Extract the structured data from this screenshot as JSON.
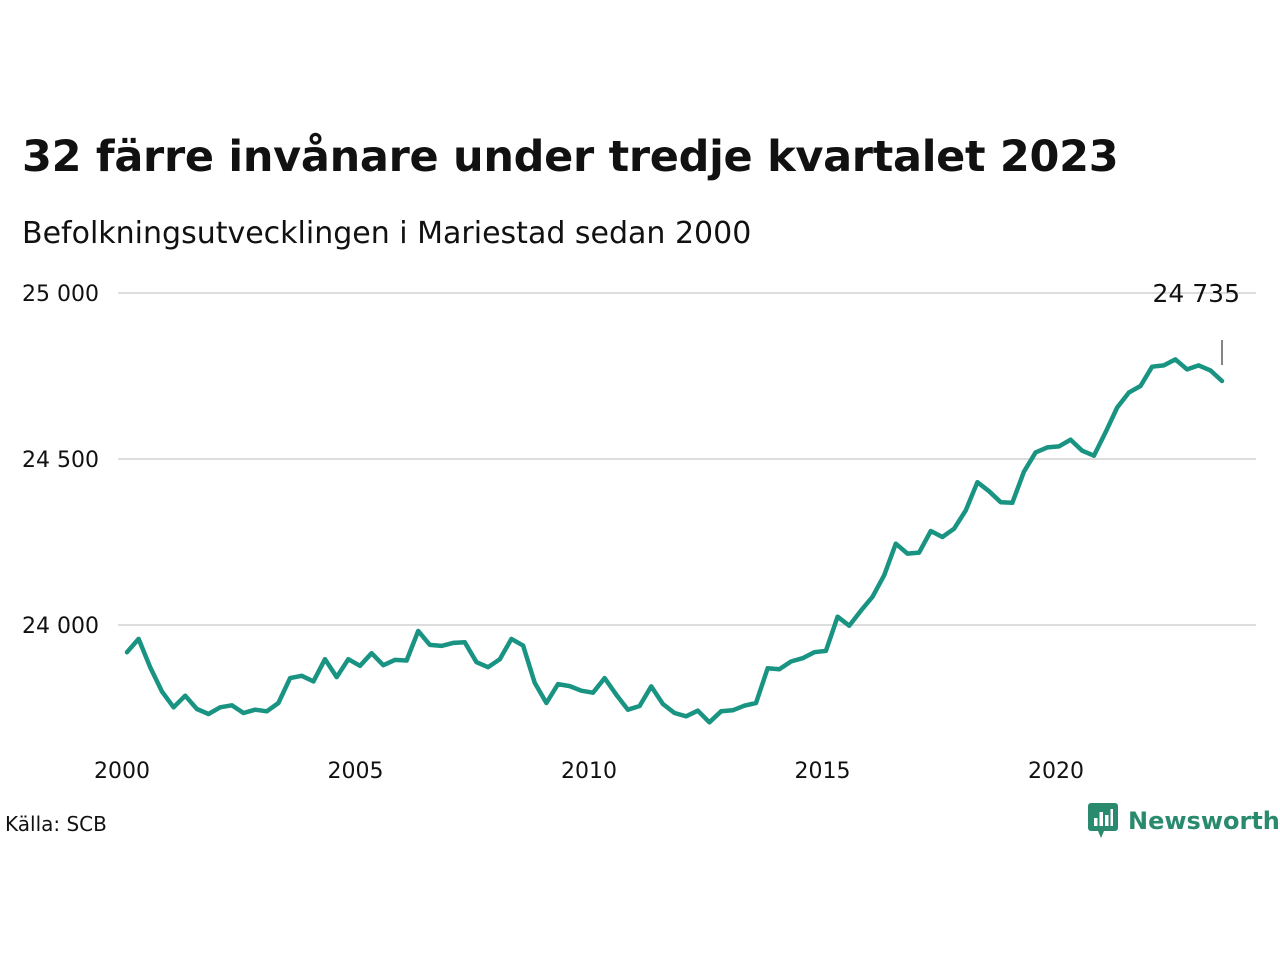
{
  "title": "32 färre invånare under tredje kvartalet 2023",
  "subtitle": "Befolkningsutvecklingen i Mariestad sedan 2000",
  "source": "Källa: SCB",
  "brand": {
    "name": "Newsworthy",
    "icon": "newsworthy-logo-icon",
    "color": "#2a8a6e"
  },
  "colors": {
    "line": "#1a9482",
    "grid": "#dddddd",
    "text": "#111111"
  },
  "chart_data": {
    "type": "line",
    "title": "32 färre invånare under tredje kvartalet 2023",
    "subtitle": "Befolkningsutvecklingen i Mariestad sedan 2000",
    "xlabel": "",
    "ylabel": "",
    "ylim": [
      23700,
      25000
    ],
    "xlim": [
      2000,
      2024
    ],
    "grid": true,
    "yticks": [
      24000,
      24500,
      25000
    ],
    "ytick_labels": [
      "24 000",
      "24 500",
      "25 000"
    ],
    "xticks": [
      2000,
      2005,
      2010,
      2015,
      2020
    ],
    "xtick_labels": [
      "2000",
      "2005",
      "2010",
      "2015",
      "2020"
    ],
    "end_label": "24 735",
    "x": [
      "2000Q1",
      "2000Q2",
      "2000Q3",
      "2000Q4",
      "2001Q1",
      "2001Q2",
      "2001Q3",
      "2001Q4",
      "2002Q1",
      "2002Q2",
      "2002Q3",
      "2002Q4",
      "2003Q1",
      "2003Q2",
      "2003Q3",
      "2003Q4",
      "2004Q1",
      "2004Q2",
      "2004Q3",
      "2004Q4",
      "2005Q1",
      "2005Q2",
      "2005Q3",
      "2005Q4",
      "2006Q1",
      "2006Q2",
      "2006Q3",
      "2006Q4",
      "2007Q1",
      "2007Q2",
      "2007Q3",
      "2007Q4",
      "2008Q1",
      "2008Q2",
      "2008Q3",
      "2008Q4",
      "2009Q1",
      "2009Q2",
      "2009Q3",
      "2009Q4",
      "2010Q1",
      "2010Q2",
      "2010Q3",
      "2010Q4",
      "2011Q1",
      "2011Q2",
      "2011Q3",
      "2011Q4",
      "2012Q1",
      "2012Q2",
      "2012Q3",
      "2012Q4",
      "2013Q1",
      "2013Q2",
      "2013Q3",
      "2013Q4",
      "2014Q1",
      "2014Q2",
      "2014Q3",
      "2014Q4",
      "2015Q1",
      "2015Q2",
      "2015Q3",
      "2015Q4",
      "2016Q1",
      "2016Q2",
      "2016Q3",
      "2016Q4",
      "2017Q1",
      "2017Q2",
      "2017Q3",
      "2017Q4",
      "2018Q1",
      "2018Q2",
      "2018Q3",
      "2018Q4",
      "2019Q1",
      "2019Q2",
      "2019Q3",
      "2019Q4",
      "2020Q1",
      "2020Q2",
      "2020Q3",
      "2020Q4",
      "2021Q1",
      "2021Q2",
      "2021Q3",
      "2021Q4",
      "2022Q1",
      "2022Q2",
      "2022Q3",
      "2022Q4",
      "2023Q1",
      "2023Q2",
      "2023Q3"
    ],
    "series": [
      {
        "values": [
          23918,
          23958,
          23872,
          23800,
          23752,
          23787,
          23747,
          23732,
          23752,
          23758,
          23735,
          23745,
          23740,
          23765,
          23840,
          23847,
          23830,
          23897,
          23843,
          23897,
          23877,
          23915,
          23879,
          23895,
          23893,
          23982,
          23940,
          23937,
          23946,
          23948,
          23888,
          23873,
          23897,
          23958,
          23938,
          23826,
          23765,
          23822,
          23816,
          23802,
          23796,
          23840,
          23790,
          23745,
          23756,
          23815,
          23762,
          23735,
          23725,
          23742,
          23707,
          23740,
          23743,
          23757,
          23765,
          23870,
          23867,
          23890,
          23900,
          23918,
          23922,
          24025,
          23998,
          24043,
          24085,
          24150,
          24245,
          24215,
          24218,
          24283,
          24265,
          24290,
          24345,
          24430,
          24403,
          24370,
          24368,
          24462,
          24520,
          24535,
          24538,
          24558,
          24525,
          24510,
          24580,
          24655,
          24700,
          24720,
          24778,
          24782,
          24800,
          24770,
          24782,
          24767,
          24735
        ]
      }
    ]
  }
}
